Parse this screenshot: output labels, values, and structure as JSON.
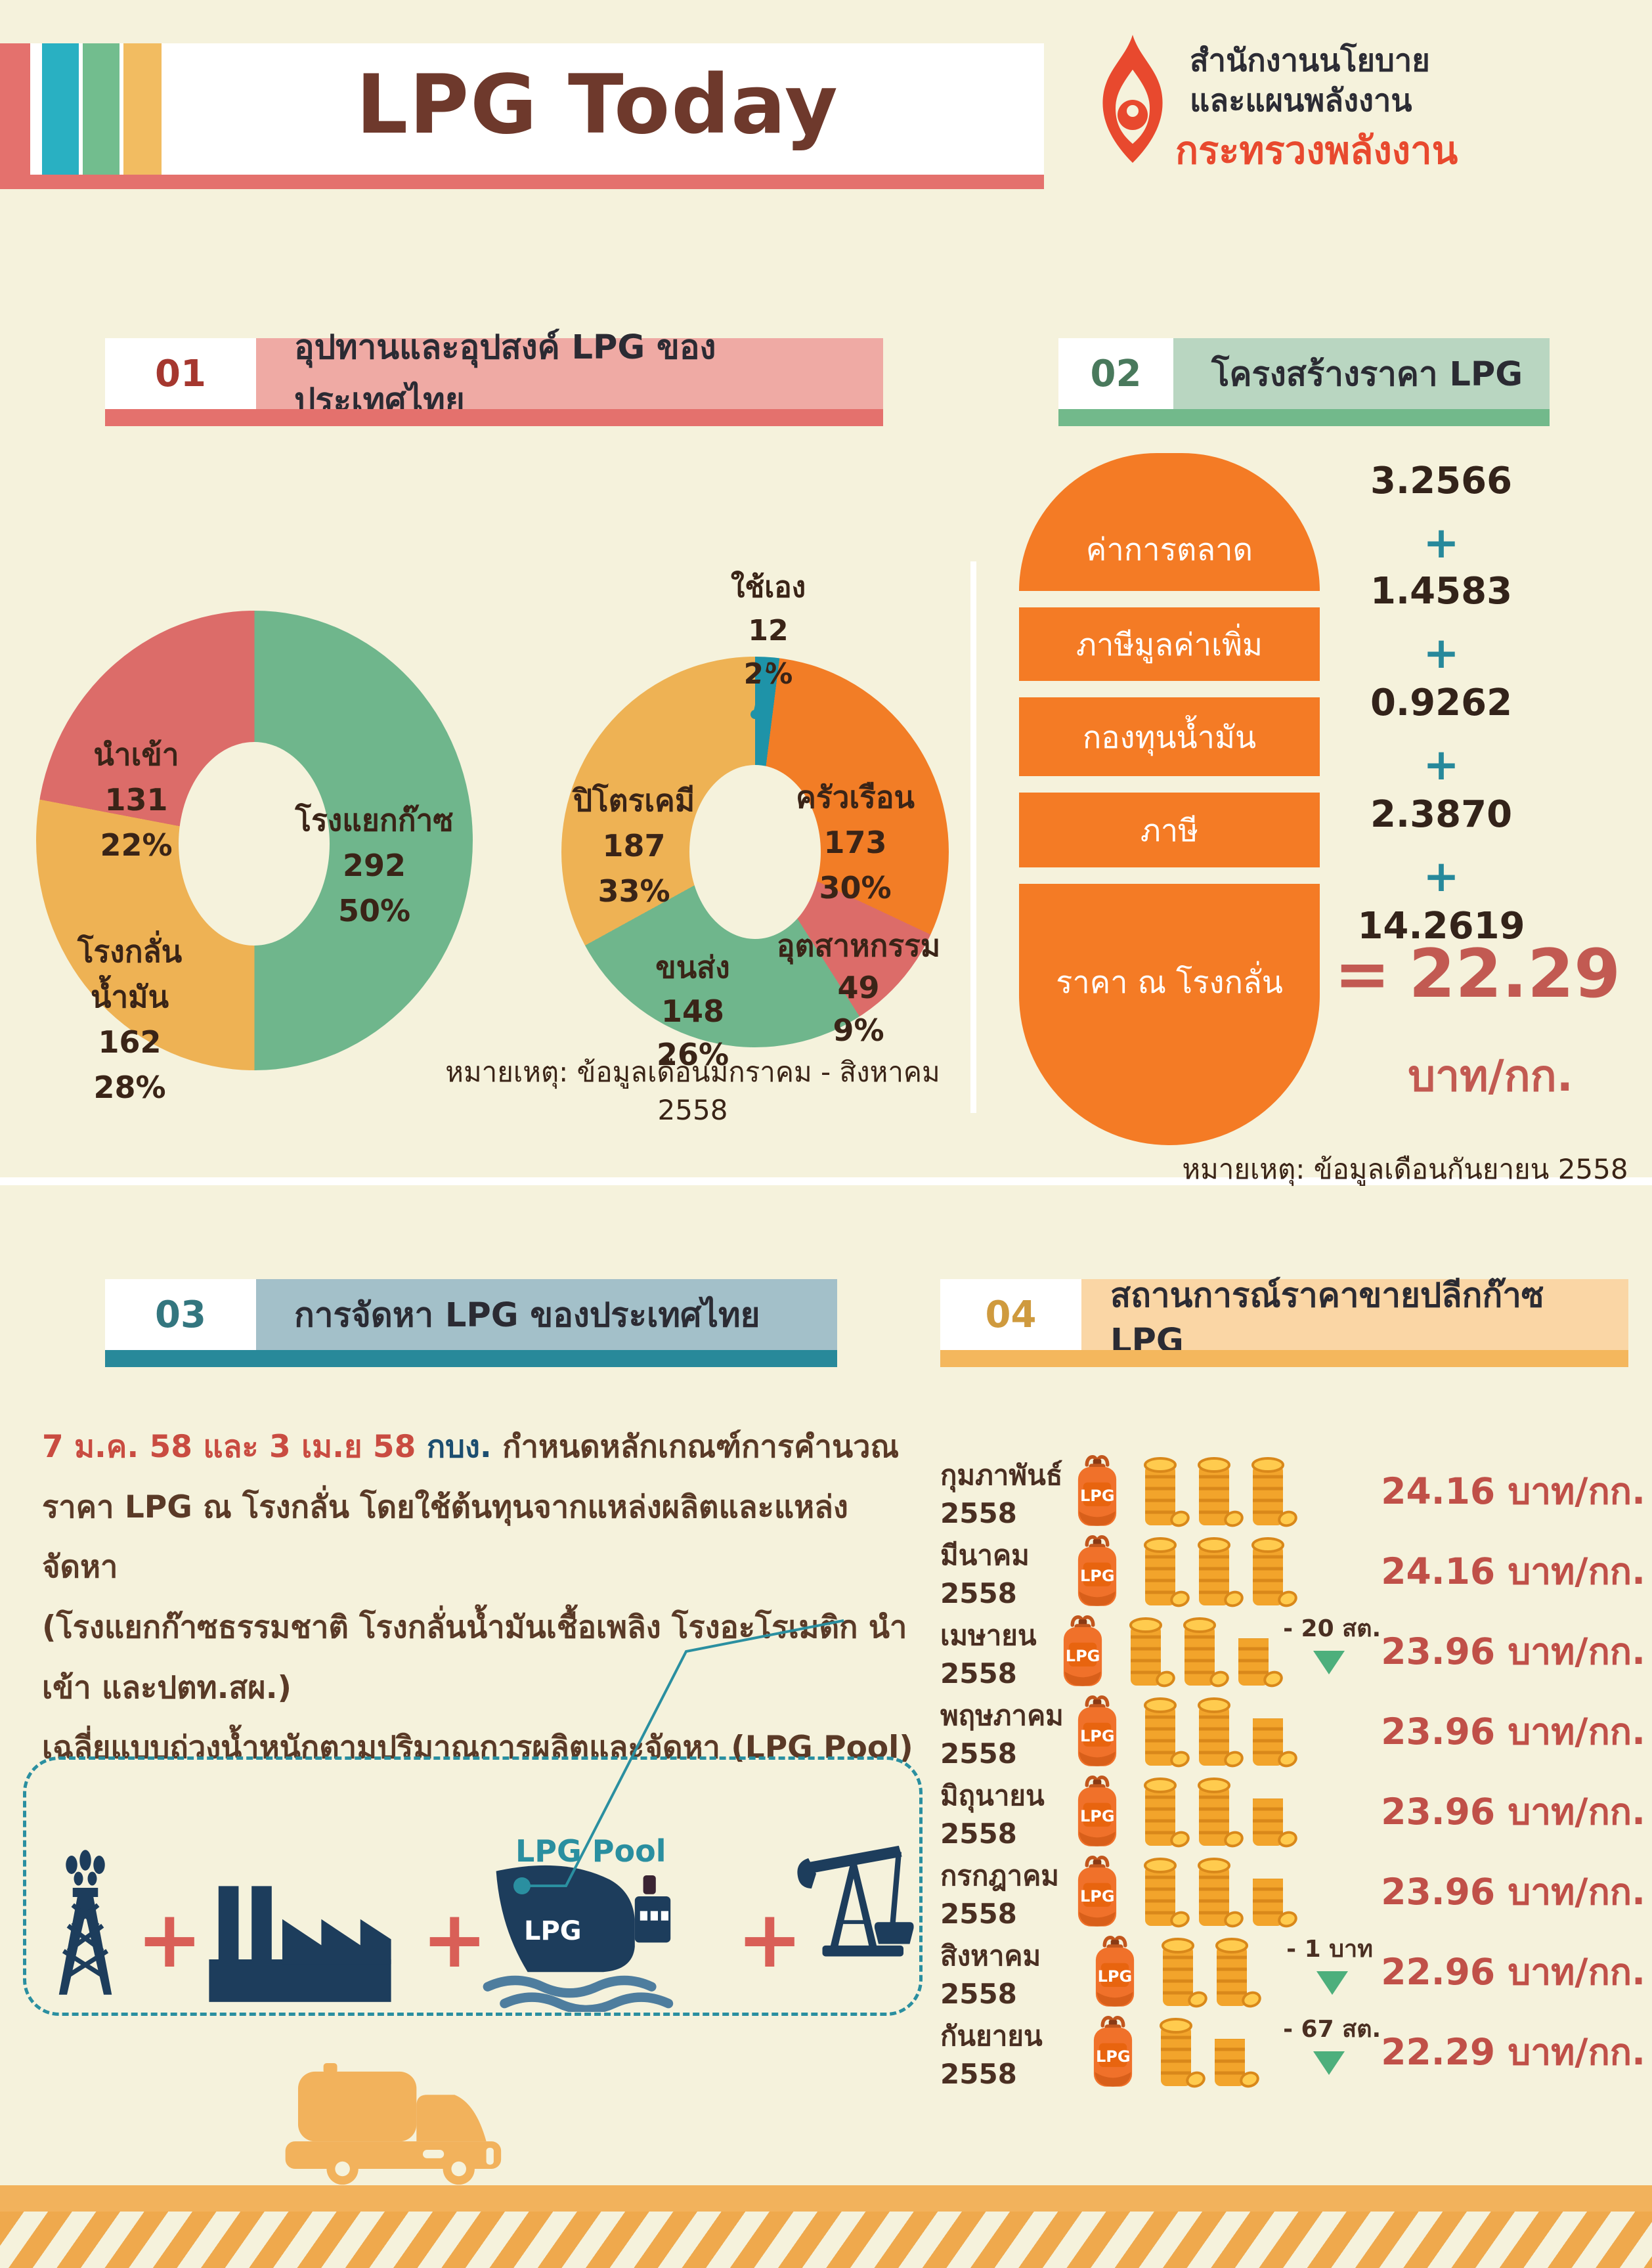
{
  "header": {
    "title": "LPG Today",
    "org_line1": "สำนักงานนโยบาย",
    "org_line2": "และแผนพลังงาน",
    "org_line3": "กระทรวงพลังงาน"
  },
  "sections": {
    "s1": {
      "number": "01",
      "title": "อุปทานและอุปสงค์ LPG ของประเทศไทย",
      "note": "หมายเหตุ: ข้อมูลเดือนมกราคม - สิงหาคม 2558"
    },
    "s2": {
      "number": "02",
      "title": "โครงสร้างราคา LPG",
      "note": "หมายเหตุ: ข้อมูลเดือนกันยายน 2558",
      "plus": "+",
      "equals": "="
    },
    "s3": {
      "number": "03",
      "title": "การจัดหา LPG ของประเทศไทย",
      "para_dates": "7 ม.ค. 58 และ 3 เม.ย 58",
      "para_committee": "กบง.",
      "para_rest1": "กำหนดหลักเกณฑ์การคำนวณ",
      "para_line2": "ราคา LPG ณ โรงกลั่น โดยใช้ต้นทุนจากแหล่งผลิตและแหล่งจัดหา",
      "para_line3": "(โรงแยกก๊าซธรรมชาติ โรงกลั่นน้ำมันเชื้อเพลิง โรงอะโรเมติก นำเข้า และปตท.สผ.)",
      "para_line4": "เฉลี่ยแบบถ่วงน้ำหนักตามปริมาณการผลิตและจัดหา (LPG Pool)",
      "pool_label": "LPG Pool",
      "ship_text": "LPG",
      "plus": "+"
    },
    "s4": {
      "number": "04",
      "title": "สถานการณ์ราคาขายปลีกก๊าซ LPG",
      "cylinder_label": "LPG"
    }
  },
  "chart_data": [
    {
      "type": "pie",
      "name": "lpg-supply-donut",
      "donut": true,
      "slices": [
        {
          "label": "โรงแยกก๊าซ",
          "value": 292,
          "pct": 50,
          "pct_label": "50%",
          "color": "#6fb68c"
        },
        {
          "label": "โรงกลั่นน้ำมัน",
          "label_lines": [
            "โรงกลั่น",
            "น้ำมัน"
          ],
          "value": 162,
          "pct": 28,
          "pct_label": "28%",
          "color": "#eeb254"
        },
        {
          "label": "นำเข้า",
          "value": 131,
          "pct": 22,
          "pct_label": "22%",
          "color": "#dc6c69"
        }
      ]
    },
    {
      "type": "pie",
      "name": "lpg-demand-donut",
      "donut": true,
      "slices": [
        {
          "label": "ใช้เอง",
          "value": 12,
          "pct": 2,
          "pct_label": "2%",
          "color": "#1e93a8"
        },
        {
          "label": "ครัวเรือน",
          "value": 173,
          "pct": 30,
          "pct_label": "30%",
          "color": "#f27d26"
        },
        {
          "label": "อุตสาหกรรม",
          "value": 49,
          "pct": 9,
          "pct_label": "9%",
          "color": "#dc6c69"
        },
        {
          "label": "ขนส่ง",
          "value": 148,
          "pct": 26,
          "pct_label": "26%",
          "color": "#6fb68c"
        },
        {
          "label": "ปิโตรเคมี",
          "value": 187,
          "pct": 33,
          "pct_label": "33%",
          "color": "#eeb254"
        }
      ]
    },
    {
      "type": "table",
      "name": "lpg-retail-prices",
      "unit": "บาท/กก.",
      "rows": [
        {
          "month": "กุมภาพันธ์ 2558",
          "price": "24.16",
          "unit": "บาท/กก.",
          "change": "",
          "coins": {
            "tall": 3,
            "short": 0
          }
        },
        {
          "month": "มีนาคม 2558",
          "price": "24.16",
          "unit": "บาท/กก.",
          "change": "",
          "coins": {
            "tall": 3,
            "short": 0
          }
        },
        {
          "month": "เมษายน 2558",
          "price": "23.96",
          "unit": "บาท/กก.",
          "change": "- 20 สต.",
          "coins": {
            "tall": 2,
            "short": 1
          }
        },
        {
          "month": "พฤษภาคม 2558",
          "price": "23.96",
          "unit": "บาท/กก.",
          "change": "",
          "coins": {
            "tall": 2,
            "short": 1
          }
        },
        {
          "month": "มิถุนายน 2558",
          "price": "23.96",
          "unit": "บาท/กก.",
          "change": "",
          "coins": {
            "tall": 2,
            "short": 1
          }
        },
        {
          "month": "กรกฎาคม 2558",
          "price": "23.96",
          "unit": "บาท/กก.",
          "change": "",
          "coins": {
            "tall": 2,
            "short": 1
          }
        },
        {
          "month": "สิงหาคม 2558",
          "price": "22.96",
          "unit": "บาท/กก.",
          "change": "- 1 บาท",
          "coins": {
            "tall": 2,
            "short": 0
          }
        },
        {
          "month": "กันยายน 2558",
          "price": "22.29",
          "unit": "บาท/กก.",
          "change": "- 67 สต.",
          "coins": {
            "tall": 1,
            "short": 1
          }
        }
      ]
    },
    {
      "type": "table",
      "name": "lpg-price-structure",
      "total": "22.29",
      "unit": "บาท/กก.",
      "components": [
        {
          "label": "ค่าการตลาด",
          "value": "3.2566"
        },
        {
          "label": "ภาษีมูลค่าเพิ่ม",
          "value": "1.4583"
        },
        {
          "label": "กองทุนน้ำมัน",
          "value": "0.9262"
        },
        {
          "label": "ภาษี",
          "value": "2.3870"
        },
        {
          "label": "ราคา ณ โรงกลั่น",
          "value": "14.2619"
        }
      ]
    }
  ]
}
